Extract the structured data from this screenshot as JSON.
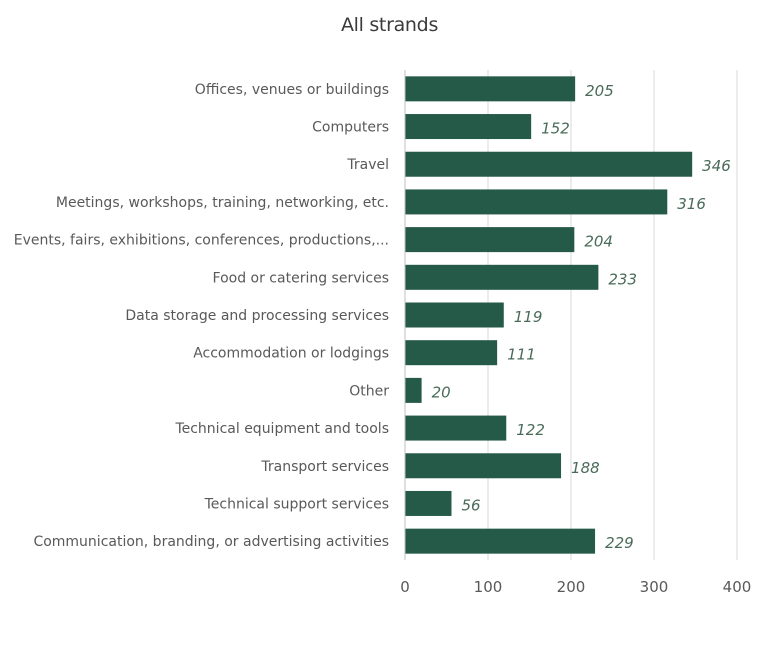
{
  "chart_data": {
    "type": "bar",
    "orientation": "horizontal",
    "title": "All strands",
    "categories": [
      "Offices, venues or buildings",
      "Computers",
      "Travel",
      "Meetings, workshops, training, networking, etc.",
      "Events, fairs, exhibitions, conferences, productions,...",
      "Food or catering services",
      "Data storage and processing services",
      "Accommodation or lodgings",
      "Other",
      "Technical equipment and tools",
      "Transport services",
      "Technical support services",
      "Communication, branding, or advertising activities"
    ],
    "values": [
      205,
      152,
      346,
      316,
      204,
      233,
      119,
      111,
      20,
      122,
      188,
      56,
      229
    ],
    "xlim": [
      0,
      400
    ],
    "xticks": [
      0,
      100,
      200,
      300,
      400
    ],
    "grid": true,
    "bar_color": "#255a48"
  }
}
